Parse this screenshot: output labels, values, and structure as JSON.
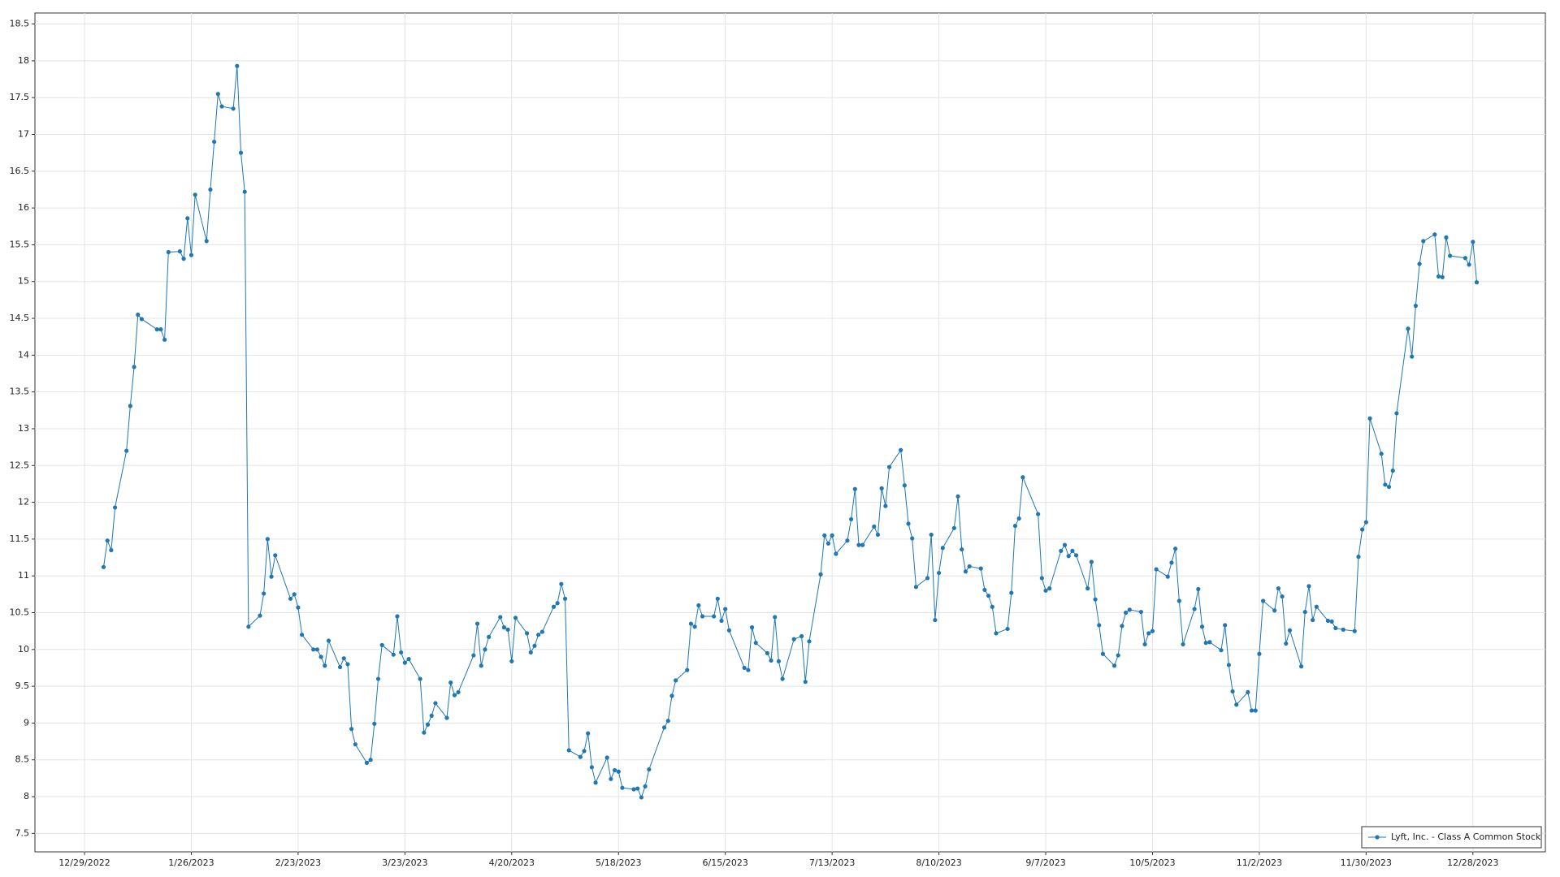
{
  "chart_data": {
    "type": "line",
    "x": [
      "1/3/2023",
      "1/4/2023",
      "1/5/2023",
      "1/6/2023",
      "1/9/2023",
      "1/10/2023",
      "1/11/2023",
      "1/12/2023",
      "1/13/2023",
      "1/17/2023",
      "1/18/2023",
      "1/19/2023",
      "1/20/2023",
      "1/23/2023",
      "1/24/2023",
      "1/25/2023",
      "1/26/2023",
      "1/27/2023",
      "1/30/2023",
      "1/31/2023",
      "2/1/2023",
      "2/2/2023",
      "2/3/2023",
      "2/6/2023",
      "2/7/2023",
      "2/8/2023",
      "2/9/2023",
      "2/10/2023",
      "2/13/2023",
      "2/14/2023",
      "2/15/2023",
      "2/16/2023",
      "2/17/2023",
      "2/21/2023",
      "2/22/2023",
      "2/23/2023",
      "2/24/2023",
      "2/27/2023",
      "2/28/2023",
      "3/1/2023",
      "3/2/2023",
      "3/3/2023",
      "3/6/2023",
      "3/7/2023",
      "3/8/2023",
      "3/9/2023",
      "3/10/2023",
      "3/13/2023",
      "3/14/2023",
      "3/15/2023",
      "3/16/2023",
      "3/17/2023",
      "3/20/2023",
      "3/21/2023",
      "3/22/2023",
      "3/23/2023",
      "3/24/2023",
      "3/27/2023",
      "3/28/2023",
      "3/29/2023",
      "3/30/2023",
      "3/31/2023",
      "4/3/2023",
      "4/4/2023",
      "4/5/2023",
      "4/6/2023",
      "4/10/2023",
      "4/11/2023",
      "4/12/2023",
      "4/13/2023",
      "4/14/2023",
      "4/17/2023",
      "4/18/2023",
      "4/19/2023",
      "4/20/2023",
      "4/21/2023",
      "4/24/2023",
      "4/25/2023",
      "4/26/2023",
      "4/27/2023",
      "4/28/2023",
      "5/1/2023",
      "5/2/2023",
      "5/3/2023",
      "5/4/2023",
      "5/5/2023",
      "5/8/2023",
      "5/9/2023",
      "5/10/2023",
      "5/11/2023",
      "5/12/2023",
      "5/15/2023",
      "5/16/2023",
      "5/17/2023",
      "5/18/2023",
      "5/19/2023",
      "5/22/2023",
      "5/23/2023",
      "5/24/2023",
      "5/25/2023",
      "5/26/2023",
      "5/30/2023",
      "5/31/2023",
      "6/1/2023",
      "6/2/2023",
      "6/5/2023",
      "6/6/2023",
      "6/7/2023",
      "6/8/2023",
      "6/9/2023",
      "6/12/2023",
      "6/13/2023",
      "6/14/2023",
      "6/15/2023",
      "6/16/2023",
      "6/20/2023",
      "6/21/2023",
      "6/22/2023",
      "6/23/2023",
      "6/26/2023",
      "6/27/2023",
      "6/28/2023",
      "6/29/2023",
      "6/30/2023",
      "7/3/2023",
      "7/5/2023",
      "7/6/2023",
      "7/7/2023",
      "7/10/2023",
      "7/11/2023",
      "7/12/2023",
      "7/13/2023",
      "7/14/2023",
      "7/17/2023",
      "7/18/2023",
      "7/19/2023",
      "7/20/2023",
      "7/21/2023",
      "7/24/2023",
      "7/25/2023",
      "7/26/2023",
      "7/27/2023",
      "7/28/2023",
      "7/31/2023",
      "8/1/2023",
      "8/2/2023",
      "8/3/2023",
      "8/4/2023",
      "8/7/2023",
      "8/8/2023",
      "8/9/2023",
      "8/10/2023",
      "8/11/2023",
      "8/14/2023",
      "8/15/2023",
      "8/16/2023",
      "8/17/2023",
      "8/18/2023",
      "8/21/2023",
      "8/22/2023",
      "8/23/2023",
      "8/24/2023",
      "8/25/2023",
      "8/28/2023",
      "8/29/2023",
      "8/30/2023",
      "8/31/2023",
      "9/1/2023",
      "9/5/2023",
      "9/6/2023",
      "9/7/2023",
      "9/8/2023",
      "9/11/2023",
      "9/12/2023",
      "9/13/2023",
      "9/14/2023",
      "9/15/2023",
      "9/18/2023",
      "9/19/2023",
      "9/20/2023",
      "9/21/2023",
      "9/22/2023",
      "9/25/2023",
      "9/26/2023",
      "9/27/2023",
      "9/28/2023",
      "9/29/2023",
      "10/2/2023",
      "10/3/2023",
      "10/4/2023",
      "10/5/2023",
      "10/6/2023",
      "10/9/2023",
      "10/10/2023",
      "10/11/2023",
      "10/12/2023",
      "10/13/2023",
      "10/16/2023",
      "10/17/2023",
      "10/18/2023",
      "10/19/2023",
      "10/20/2023",
      "10/23/2023",
      "10/24/2023",
      "10/25/2023",
      "10/26/2023",
      "10/27/2023",
      "10/30/2023",
      "10/31/2023",
      "11/1/2023",
      "11/2/2023",
      "11/3/2023",
      "11/6/2023",
      "11/7/2023",
      "11/8/2023",
      "11/9/2023",
      "11/10/2023",
      "11/13/2023",
      "11/14/2023",
      "11/15/2023",
      "11/16/2023",
      "11/17/2023",
      "11/20/2023",
      "11/21/2023",
      "11/22/2023",
      "11/24/2023",
      "11/27/2023",
      "11/28/2023",
      "11/29/2023",
      "11/30/2023",
      "12/1/2023",
      "12/4/2023",
      "12/5/2023",
      "12/6/2023",
      "12/7/2023",
      "12/8/2023",
      "12/11/2023",
      "12/12/2023",
      "12/13/2023",
      "12/14/2023",
      "12/15/2023",
      "12/18/2023",
      "12/19/2023",
      "12/20/2023",
      "12/21/2023",
      "12/22/2023",
      "12/26/2023",
      "12/27/2023",
      "12/28/2023",
      "12/29/2023"
    ],
    "series": [
      {
        "name": "Lyft, Inc. - Class A Common Stock",
        "color": "#1f77b4",
        "values": [
          11.12,
          11.48,
          11.35,
          11.93,
          12.7,
          13.31,
          13.84,
          14.55,
          14.49,
          14.35,
          14.35,
          14.21,
          15.4,
          15.41,
          15.31,
          15.86,
          15.36,
          16.18,
          15.55,
          16.25,
          16.9,
          17.55,
          17.38,
          17.35,
          17.93,
          16.75,
          16.22,
          10.31,
          10.46,
          10.76,
          11.5,
          10.99,
          11.28,
          10.69,
          10.75,
          10.57,
          10.2,
          10.0,
          10.0,
          9.9,
          9.78,
          10.12,
          9.76,
          9.88,
          9.8,
          8.92,
          8.71,
          8.46,
          8.5,
          8.99,
          9.6,
          10.06,
          9.93,
          10.45,
          9.96,
          9.82,
          9.87,
          9.6,
          8.87,
          8.98,
          9.1,
          9.27,
          9.07,
          9.55,
          9.38,
          9.42,
          9.92,
          10.35,
          9.78,
          10.0,
          10.17,
          10.44,
          10.3,
          10.27,
          9.84,
          10.43,
          10.22,
          9.96,
          10.05,
          10.2,
          10.24,
          10.58,
          10.63,
          10.89,
          10.69,
          8.63,
          8.54,
          8.62,
          8.86,
          8.4,
          8.19,
          8.53,
          8.24,
          8.36,
          8.34,
          8.12,
          8.1,
          8.11,
          7.99,
          8.14,
          8.37,
          8.94,
          9.03,
          9.37,
          9.58,
          9.72,
          10.35,
          10.31,
          10.6,
          10.45,
          10.45,
          10.69,
          10.39,
          10.55,
          10.26,
          9.75,
          9.72,
          10.3,
          10.09,
          9.95,
          9.85,
          10.44,
          9.84,
          9.6,
          10.14,
          10.18,
          9.56,
          10.11,
          11.02,
          11.55,
          11.44,
          11.55,
          11.3,
          11.48,
          11.77,
          12.18,
          11.42,
          11.42,
          11.67,
          11.56,
          12.19,
          11.95,
          12.48,
          12.71,
          12.23,
          11.71,
          11.51,
          10.85,
          10.97,
          11.56,
          10.4,
          11.04,
          11.38,
          11.65,
          12.08,
          11.36,
          11.06,
          11.13,
          11.1,
          10.81,
          10.73,
          10.58,
          10.22,
          10.28,
          10.77,
          11.68,
          11.78,
          12.34,
          11.84,
          10.97,
          10.8,
          10.83,
          11.34,
          11.42,
          11.27,
          11.34,
          11.28,
          10.83,
          11.19,
          10.68,
          10.33,
          9.94,
          9.78,
          9.92,
          10.32,
          10.5,
          10.54,
          10.51,
          10.07,
          10.22,
          10.25,
          11.09,
          10.99,
          11.18,
          11.37,
          10.66,
          10.07,
          10.55,
          10.82,
          10.31,
          10.09,
          10.1,
          9.99,
          10.33,
          9.79,
          9.43,
          9.25,
          9.42,
          9.17,
          9.17,
          9.94,
          10.66,
          10.53,
          10.83,
          10.72,
          10.08,
          10.26,
          9.77,
          10.51,
          10.86,
          10.4,
          10.58,
          10.39,
          10.38,
          10.29,
          10.27,
          10.25,
          11.26,
          11.63,
          11.73,
          13.14,
          12.66,
          12.24,
          12.21,
          12.43,
          13.21,
          14.36,
          13.98,
          14.67,
          15.24,
          15.55,
          15.64,
          15.07,
          15.06,
          15.6,
          15.35,
          15.32,
          15.23,
          15.54,
          14.99
        ]
      }
    ],
    "xlim": [
      "12/16/2022",
      "1/16/2024"
    ],
    "xticks": [
      "12/29/2022",
      "1/26/2023",
      "2/23/2023",
      "3/23/2023",
      "4/20/2023",
      "5/18/2023",
      "6/15/2023",
      "7/13/2023",
      "8/10/2023",
      "9/7/2023",
      "10/5/2023",
      "11/2/2023",
      "11/30/2023",
      "12/28/2023"
    ],
    "ylim": [
      7.25,
      18.65
    ],
    "yticks": [
      7.5,
      8,
      8.5,
      9,
      9.5,
      10,
      10.5,
      11,
      11.5,
      12,
      12.5,
      13,
      13.5,
      14,
      14.5,
      15,
      15.5,
      16,
      16.5,
      17,
      17.5,
      18,
      18.5
    ],
    "grid": true,
    "legend": "lower right"
  }
}
